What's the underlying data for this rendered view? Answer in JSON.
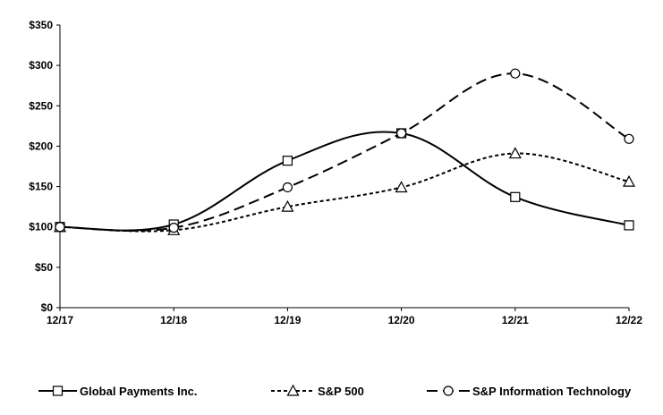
{
  "chart_data": {
    "type": "line",
    "title": "",
    "xlabel": "",
    "ylabel": "",
    "categories": [
      "12/17",
      "12/18",
      "12/19",
      "12/20",
      "12/21",
      "12/22"
    ],
    "ylim": [
      0,
      350
    ],
    "y_ticks": [
      0,
      50,
      100,
      150,
      200,
      250,
      300,
      350
    ],
    "y_tick_labels": [
      "$0",
      "$50",
      "$100",
      "$150",
      "$200",
      "$250",
      "$300",
      "$350"
    ],
    "grid": false,
    "legend_position": "bottom",
    "series": [
      {
        "name": "Global Payments Inc.",
        "values": [
          100,
          103,
          182,
          216,
          137,
          102
        ],
        "line_style": "solid",
        "marker": "square",
        "color": "#000000"
      },
      {
        "name": "S&P 500",
        "values": [
          100,
          96,
          125,
          149,
          191,
          156
        ],
        "line_style": "dotted",
        "marker": "triangle",
        "color": "#000000"
      },
      {
        "name": "S&P Information Technology",
        "values": [
          100,
          99,
          149,
          216,
          290,
          209
        ],
        "line_style": "dashed",
        "marker": "circle",
        "color": "#000000"
      }
    ]
  }
}
